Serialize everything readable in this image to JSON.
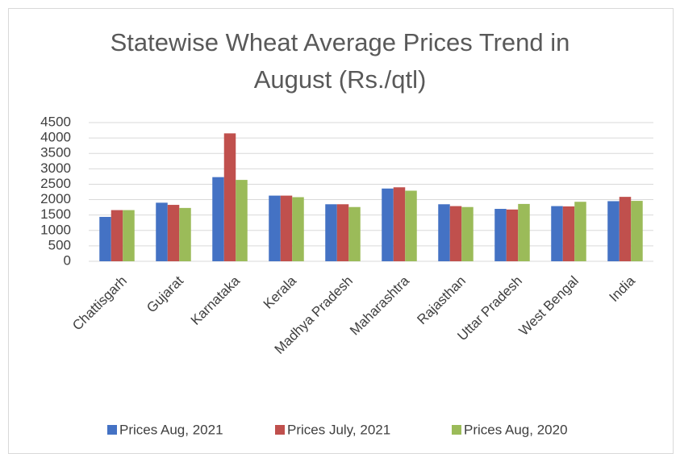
{
  "chart_data": {
    "type": "bar",
    "title": "Statewise Wheat Average Prices Trend in August (Rs./qtl)",
    "categories": [
      "Chattisgarh",
      "Gujarat",
      "Karnataka",
      "Kerala",
      "Madhya Pradesh",
      "Maharashtra",
      "Rajasthan",
      "Uttar Pradesh",
      "West Bengal",
      "India"
    ],
    "series": [
      {
        "name": "Prices Aug, 2021",
        "color": "#4472c4",
        "values": [
          1440,
          1900,
          2730,
          2130,
          1850,
          2360,
          1850,
          1700,
          1790,
          1950
        ]
      },
      {
        "name": "Prices July, 2021",
        "color": "#c0504d",
        "values": [
          1660,
          1830,
          4150,
          2130,
          1850,
          2400,
          1790,
          1680,
          1780,
          2090
        ]
      },
      {
        "name": "Prices Aug, 2020",
        "color": "#9bbb59",
        "values": [
          1660,
          1730,
          2640,
          2080,
          1760,
          2290,
          1760,
          1860,
          1930,
          1960
        ]
      }
    ],
    "ylim": [
      0,
      4500
    ],
    "yticks": [
      0,
      500,
      1000,
      1500,
      2000,
      2500,
      3000,
      3500,
      4000,
      4500
    ],
    "grid": true,
    "legend": "bottom"
  }
}
